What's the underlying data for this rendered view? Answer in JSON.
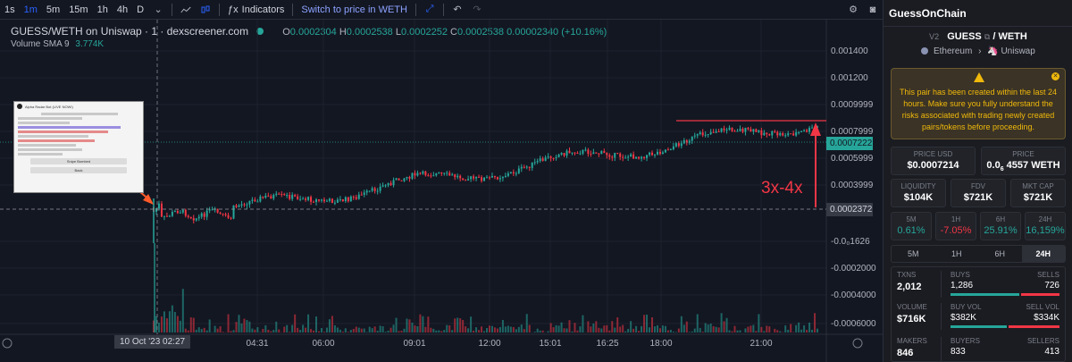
{
  "toolbar": {
    "intervals": [
      "1s",
      "1m",
      "5m",
      "15m",
      "1h",
      "4h",
      "D"
    ],
    "active_interval": "1m",
    "indicators_label": "Indicators",
    "switch_label": "Switch to price in WETH"
  },
  "legend": {
    "pair": "GUESS/WETH on Uniswap · 1 · dexscreener.com",
    "o_key": "O",
    "o": "0.0002304",
    "h_key": "H",
    "h": "0.0002538",
    "l_key": "L",
    "l": "0.0002252",
    "c_key": "C",
    "c": "0.0002538",
    "change": "0.00002340 (+10.16%)",
    "volume_label": "Volume",
    "sma_label": "SMA 9",
    "sma_value": "3.774K"
  },
  "price_axis": [
    "0.001400",
    "0.001200",
    "0.0009999",
    "0.0007999",
    "0.0005999",
    "0.0003999",
    "-0.0₀1626",
    "-0.0002000",
    "-0.0004000",
    "-0.0006000"
  ],
  "price_badges": {
    "current": "0.0007222",
    "crosshair": "0.0002372"
  },
  "time_axis": [
    "04:31",
    "06:00",
    "09:01",
    "12:00",
    "15:01",
    "16:25",
    "18:00",
    "21:00"
  ],
  "time_badge": "10 Oct '23   02:27",
  "annotation": "3x-4x",
  "thumbnail": {
    "title": "Alpha Radar Bot (LIVE NOW!)",
    "button_1": "Snipe Bombed",
    "button_2": "Back"
  },
  "side": {
    "header": "GuessOnChain",
    "version": "V2",
    "base": "GUESS",
    "quote": "/ WETH",
    "chain": "Ethereum",
    "dex": "Uniswap",
    "warning": "This pair has been created within the last 24 hours. Make sure you fully understand the risks associated with trading newly created pairs/tokens before proceeding.",
    "price_usd_label": "PRICE USD",
    "price_usd": "$0.0007214",
    "price_label": "PRICE",
    "price_prefix": "0.0",
    "price_sub": "6",
    "price_rest": "4557 WETH",
    "liquidity_label": "LIQUIDITY",
    "liquidity": "$104K",
    "fdv_label": "FDV",
    "fdv": "$721K",
    "mcap_label": "MKT CAP",
    "mcap": "$721K",
    "changes": [
      {
        "label": "5M",
        "value": "0.61%",
        "dir": "up"
      },
      {
        "label": "1H",
        "value": "-7.05%",
        "dir": "down"
      },
      {
        "label": "6H",
        "value": "25.91%",
        "dir": "up"
      },
      {
        "label": "24H",
        "value": "16,159%",
        "dir": "up"
      }
    ],
    "tabs": [
      "5M",
      "1H",
      "6H",
      "24H"
    ],
    "active_tab": "24H",
    "txns_label": "TXNS",
    "txns": "2,012",
    "buys_label": "BUYS",
    "buys": "1,286",
    "sells_label": "SELLS",
    "sells": "726",
    "volume_label": "VOLUME",
    "volume": "$716K",
    "buy_vol_label": "BUY VOL",
    "buy_vol": "$382K",
    "sell_vol_label": "SELL VOL",
    "sell_vol": "$334K",
    "makers_label": "MAKERS",
    "makers": "846",
    "buyers_label": "BUYERS",
    "buyers": "833",
    "sellers_label": "SELLERS",
    "sellers": "413"
  },
  "colors": {
    "up": "#26a69a",
    "down": "#f23645",
    "accent": "#2962ff",
    "warning": "#f0b90b"
  }
}
